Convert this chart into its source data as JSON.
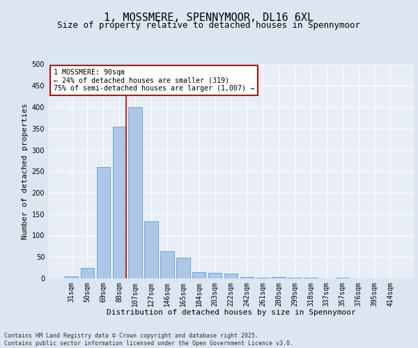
{
  "title": "1, MOSSMERE, SPENNYMOOR, DL16 6XL",
  "subtitle": "Size of property relative to detached houses in Spennymoor",
  "xlabel": "Distribution of detached houses by size in Spennymoor",
  "ylabel": "Number of detached properties",
  "categories": [
    "31sqm",
    "50sqm",
    "69sqm",
    "88sqm",
    "107sqm",
    "127sqm",
    "146sqm",
    "165sqm",
    "184sqm",
    "203sqm",
    "222sqm",
    "242sqm",
    "261sqm",
    "280sqm",
    "299sqm",
    "318sqm",
    "337sqm",
    "357sqm",
    "376sqm",
    "395sqm",
    "414sqm"
  ],
  "values": [
    5,
    25,
    260,
    355,
    400,
    133,
    63,
    48,
    15,
    13,
    12,
    4,
    1,
    4,
    1,
    1,
    0,
    1,
    0,
    0,
    0
  ],
  "bar_color": "#aec6e8",
  "bar_edge_color": "#5a9fd4",
  "vline_index": 3,
  "vline_color": "#cc0000",
  "annotation_text": "1 MOSSMERE: 90sqm\n← 24% of detached houses are smaller (319)\n75% of semi-detached houses are larger (1,007) →",
  "annotation_box_color": "#cc0000",
  "ylim": [
    0,
    500
  ],
  "yticks": [
    0,
    50,
    100,
    150,
    200,
    250,
    300,
    350,
    400,
    450,
    500
  ],
  "bg_color": "#dce6f0",
  "plot_bg_color": "#e8eef5",
  "footer": "Contains HM Land Registry data © Crown copyright and database right 2025.\nContains public sector information licensed under the Open Government Licence v3.0.",
  "title_fontsize": 11,
  "subtitle_fontsize": 9,
  "axis_fontsize": 8,
  "tick_fontsize": 7
}
